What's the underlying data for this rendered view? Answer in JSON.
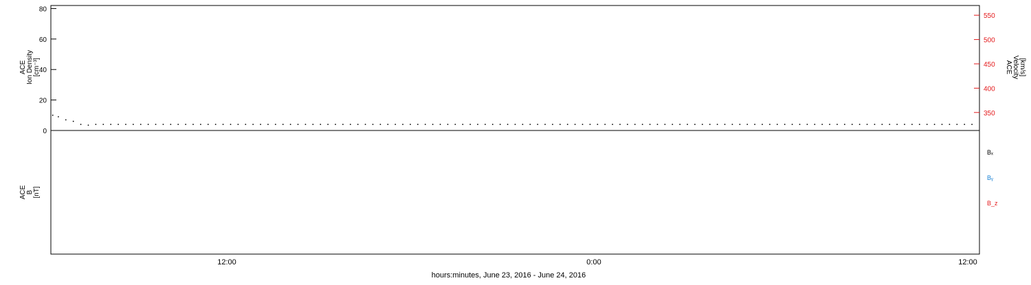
{
  "chart_data": [
    {
      "type": "scatter",
      "panel": "top",
      "ylabel_left": [
        "ACE",
        "Ion Density",
        "[cm⁻³]"
      ],
      "ylabel_right": [
        "ACE",
        "Velocity",
        "[km/s]"
      ],
      "ylim_left": [
        0,
        82
      ],
      "ylim_right": [
        313,
        570
      ],
      "left_ticks": [
        0,
        20,
        40,
        60,
        80
      ],
      "right_ticks": [
        350,
        400,
        450,
        500,
        550
      ],
      "right_color": "#e31a1c",
      "series": [
        {
          "axis": "left",
          "color": "#000000",
          "points": [
            [
              -5.5,
              10
            ],
            [
              -4,
              9
            ],
            [
              -2,
              7
            ],
            [
              0,
              6
            ],
            [
              2,
              4
            ],
            [
              4,
              3.5
            ],
            [
              6,
              4
            ],
            [
              8,
              4
            ],
            [
              10,
              4
            ],
            [
              12,
              4
            ],
            [
              14,
              4
            ],
            [
              16,
              4
            ],
            [
              18,
              4
            ],
            [
              20,
              4
            ],
            [
              22,
              4
            ],
            [
              24,
              4
            ],
            [
              26,
              4
            ],
            [
              28,
              4
            ],
            [
              30,
              4
            ],
            [
              32,
              4
            ],
            [
              34,
              4
            ],
            [
              36,
              4
            ],
            [
              38,
              4
            ],
            [
              40,
              4
            ],
            [
              42,
              4
            ],
            [
              44,
              4
            ],
            [
              46,
              4
            ],
            [
              48,
              4
            ],
            [
              50,
              4
            ],
            [
              52,
              4
            ],
            [
              54,
              4
            ],
            [
              56,
              4
            ],
            [
              58,
              4
            ],
            [
              60,
              4
            ],
            [
              62,
              4
            ],
            [
              64,
              4
            ],
            [
              66,
              4
            ],
            [
              68,
              4
            ],
            [
              70,
              4
            ],
            [
              72,
              4
            ],
            [
              74,
              4
            ],
            [
              76,
              4
            ],
            [
              78,
              4
            ],
            [
              80,
              4
            ],
            [
              82,
              4
            ],
            [
              84,
              4
            ],
            [
              86,
              4
            ],
            [
              88,
              4
            ],
            [
              90,
              4
            ],
            [
              92,
              4
            ],
            [
              94,
              4
            ],
            [
              96,
              4
            ],
            [
              98,
              4
            ],
            [
              100,
              4
            ],
            [
              102,
              4
            ],
            [
              104,
              4
            ],
            [
              106,
              4
            ],
            [
              108,
              4
            ],
            [
              110,
              4
            ],
            [
              112,
              4
            ],
            [
              114,
              4
            ],
            [
              116,
              4
            ],
            [
              118,
              4
            ],
            [
              120,
              4
            ],
            [
              122,
              4
            ],
            [
              124,
              4
            ],
            [
              126,
              4
            ],
            [
              128,
              4
            ],
            [
              130,
              4
            ],
            [
              132,
              4
            ],
            [
              134,
              4
            ],
            [
              136,
              4
            ],
            [
              138,
              4
            ],
            [
              140,
              4
            ],
            [
              142,
              4
            ],
            [
              144,
              4
            ],
            [
              146,
              4
            ],
            [
              148,
              4
            ],
            [
              150,
              4
            ],
            [
              152,
              4
            ],
            [
              154,
              4
            ],
            [
              156,
              4
            ],
            [
              158,
              4
            ],
            [
              160,
              4
            ],
            [
              162,
              4
            ],
            [
              164,
              4
            ],
            [
              166,
              4
            ],
            [
              168,
              4
            ],
            [
              170,
              4
            ],
            [
              172,
              4
            ],
            [
              174,
              4
            ],
            [
              176,
              4
            ],
            [
              178,
              4
            ],
            [
              180,
              4
            ],
            [
              182,
              4
            ],
            [
              184,
              4
            ],
            [
              186,
              4
            ],
            [
              188,
              4
            ],
            [
              190,
              4
            ],
            [
              192,
              4
            ],
            [
              194,
              4
            ],
            [
              196,
              4
            ],
            [
              198,
              4
            ],
            [
              200,
              4
            ],
            [
              202,
              4
            ],
            [
              204,
              4
            ],
            [
              206,
              4
            ],
            [
              208,
              4
            ],
            [
              210,
              4
            ],
            [
              212,
              4
            ],
            [
              214,
              4
            ],
            [
              216,
              4
            ],
            [
              218,
              4
            ],
            [
              220,
              4
            ],
            [
              222,
              4
            ],
            [
              224,
              4
            ],
            [
              226,
              4
            ],
            [
              228,
              4
            ],
            [
              230,
              4
            ],
            [
              232,
              4
            ],
            [
              234,
              4
            ],
            [
              236,
              4
            ],
            [
              238,
              4
            ],
            [
              240,
              4
            ]
          ]
        }
      ]
    }
  ],
  "x_axis": {
    "label": "hours:minutes, June 23, 2016 - June 24, 2016",
    "ticks": [
      "12:00",
      "0:00",
      "12:00"
    ]
  },
  "bottom_panel": {
    "ylabel": [
      "ACE",
      "B",
      "[nT]"
    ],
    "legend": [
      "Bₓ",
      "Bᵧ",
      "B_z"
    ]
  }
}
